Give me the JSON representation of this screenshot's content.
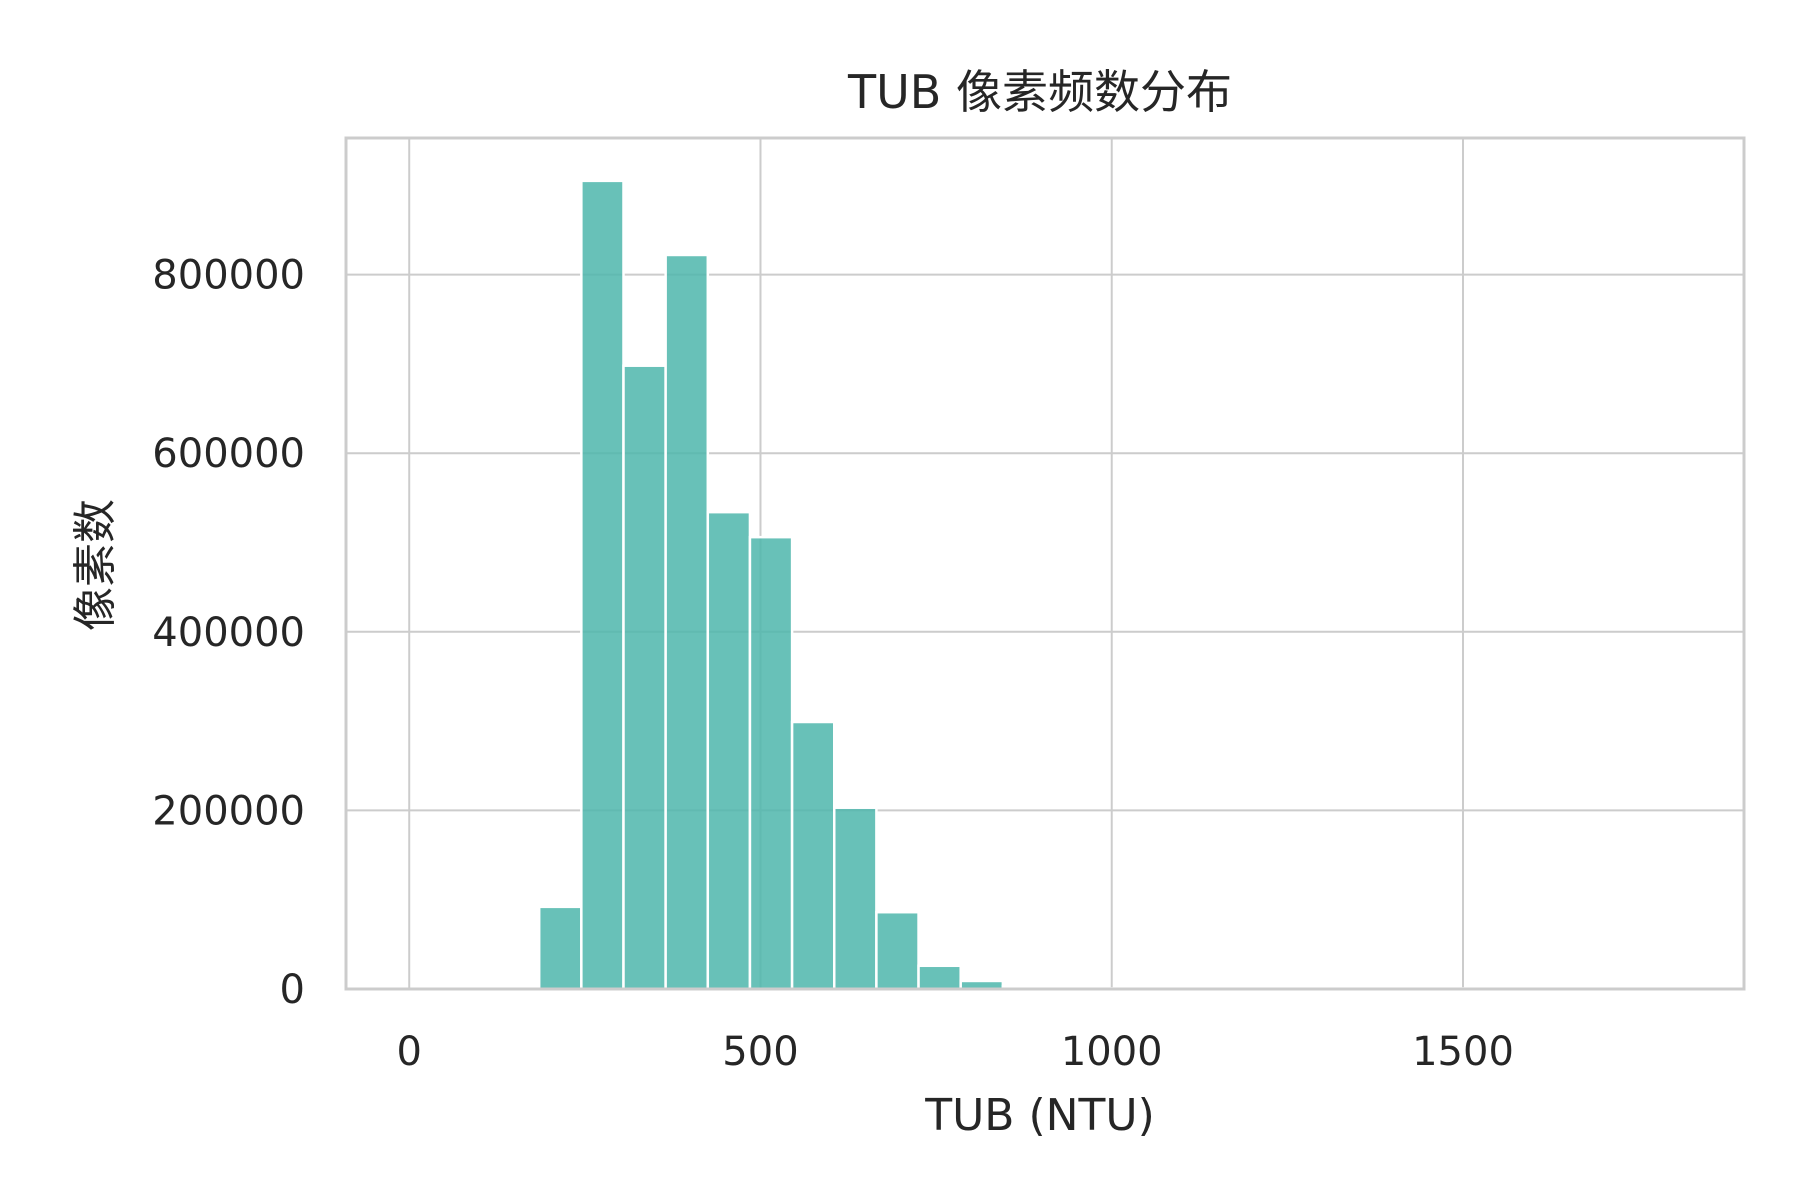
{
  "chart_data": {
    "type": "bar",
    "subtype": "histogram",
    "title": "TUB 像素频数分布",
    "xlabel": "TUB (NTU)",
    "ylabel": "像素数",
    "xlim": [
      -90,
      1900
    ],
    "ylim": [
      0,
      953000
    ],
    "x_ticks": [
      0,
      500,
      1000,
      1500
    ],
    "y_ticks": [
      0,
      200000,
      400000,
      600000,
      800000
    ],
    "grid": true,
    "legend": "none",
    "bar_color": "#4db6ac",
    "bin_width": 60,
    "bins": [
      {
        "x0": 0,
        "x1": 60,
        "value": 0
      },
      {
        "x0": 60,
        "x1": 120,
        "value": 0
      },
      {
        "x0": 120,
        "x1": 180,
        "value": 0
      },
      {
        "x0": 185,
        "x1": 245,
        "value": 92000
      },
      {
        "x0": 245,
        "x1": 305,
        "value": 905000
      },
      {
        "x0": 305,
        "x1": 365,
        "value": 698000
      },
      {
        "x0": 365,
        "x1": 425,
        "value": 822000
      },
      {
        "x0": 425,
        "x1": 485,
        "value": 534000
      },
      {
        "x0": 485,
        "x1": 545,
        "value": 506000
      },
      {
        "x0": 545,
        "x1": 605,
        "value": 299000
      },
      {
        "x0": 605,
        "x1": 665,
        "value": 203000
      },
      {
        "x0": 665,
        "x1": 725,
        "value": 86000
      },
      {
        "x0": 725,
        "x1": 785,
        "value": 26000
      },
      {
        "x0": 785,
        "x1": 845,
        "value": 9000
      },
      {
        "x0": 845,
        "x1": 905,
        "value": 3000
      },
      {
        "x0": 905,
        "x1": 965,
        "value": 1000
      },
      {
        "x0": 965,
        "x1": 1025,
        "value": 500
      },
      {
        "x0": 1025,
        "x1": 1085,
        "value": 300
      },
      {
        "x0": 1085,
        "x1": 1145,
        "value": 200
      },
      {
        "x0": 1145,
        "x1": 1205,
        "value": 150
      },
      {
        "x0": 1205,
        "x1": 1265,
        "value": 100
      },
      {
        "x0": 1265,
        "x1": 1325,
        "value": 80
      },
      {
        "x0": 1325,
        "x1": 1385,
        "value": 60
      },
      {
        "x0": 1385,
        "x1": 1445,
        "value": 50
      },
      {
        "x0": 1445,
        "x1": 1505,
        "value": 40
      },
      {
        "x0": 1505,
        "x1": 1565,
        "value": 30
      },
      {
        "x0": 1565,
        "x1": 1625,
        "value": 20
      },
      {
        "x0": 1625,
        "x1": 1685,
        "value": 15
      },
      {
        "x0": 1685,
        "x1": 1745,
        "value": 10
      },
      {
        "x0": 1745,
        "x1": 1805,
        "value": 5
      }
    ]
  }
}
